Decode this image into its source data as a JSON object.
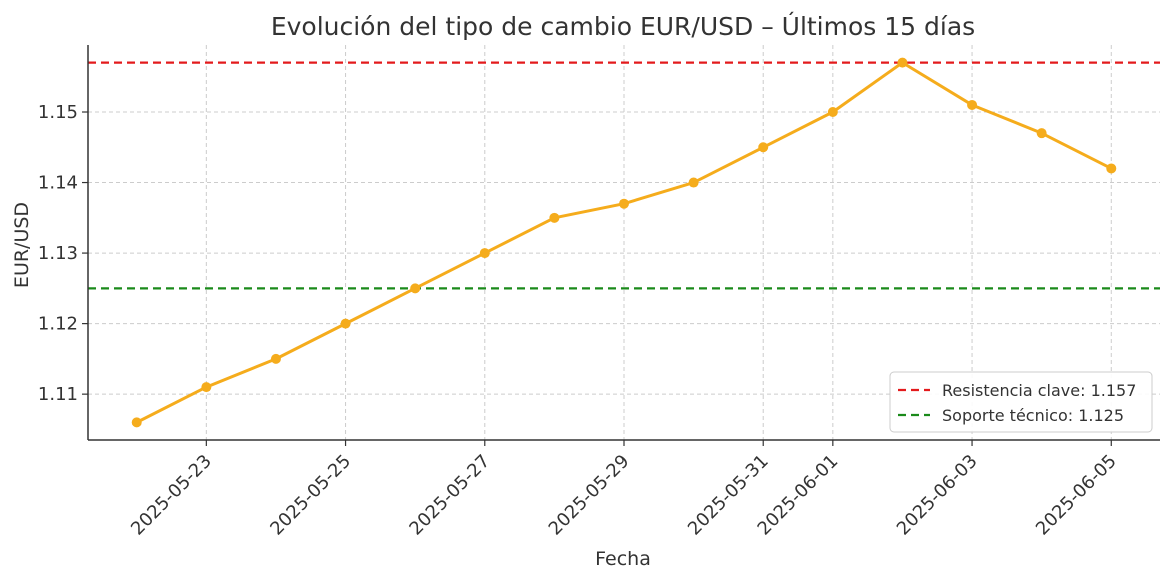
{
  "chart_data": {
    "type": "line",
    "title": "Evolución del tipo de cambio EUR/USD – Últimos 15 días",
    "xlabel": "Fecha",
    "ylabel": "EUR/USD",
    "x": [
      "2025-05-22",
      "2025-05-23",
      "2025-05-24",
      "2025-05-25",
      "2025-05-26",
      "2025-05-27",
      "2025-05-28",
      "2025-05-29",
      "2025-05-30",
      "2025-05-31",
      "2025-06-01",
      "2025-06-02",
      "2025-06-03",
      "2025-06-04",
      "2025-06-05"
    ],
    "series": [
      {
        "values": [
          1.106,
          1.111,
          1.115,
          1.12,
          1.125,
          1.13,
          1.135,
          1.137,
          1.14,
          1.145,
          1.15,
          1.157,
          1.151,
          1.147,
          1.142
        ],
        "color": "#f5ac1c"
      }
    ],
    "x_tick_labels": [
      "2025-05-23",
      "2025-05-25",
      "2025-05-27",
      "2025-05-29",
      "2025-05-31",
      "2025-06-01",
      "2025-06-03",
      "2025-06-05"
    ],
    "y_ticks": [
      "1.11",
      "1.12",
      "1.13",
      "1.14",
      "1.15"
    ],
    "ylim": [
      1.1035,
      1.1595
    ],
    "grid": true,
    "reference_lines": [
      {
        "label": "Resistencia clave: 1.157",
        "value": 1.157,
        "color": "#e31a1c"
      },
      {
        "label": "Soporte técnico: 1.125",
        "value": 1.125,
        "color": "#1a8a1a"
      }
    ],
    "legend_position": "bottom-right"
  }
}
